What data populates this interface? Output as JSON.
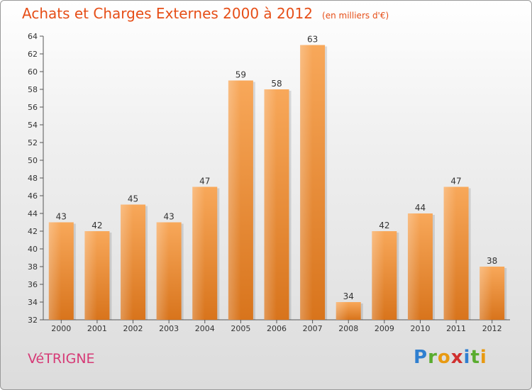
{
  "header": {
    "title": "Achats et Charges Externes 2000 à 2012",
    "subtitle": "(en milliers d'€)"
  },
  "place_name": "VéTRIGNE",
  "logo": {
    "text": "Proxiti",
    "letters": [
      {
        "ch": "P",
        "color": "#2f7fd0"
      },
      {
        "ch": "r",
        "color": "#5aac2f"
      },
      {
        "ch": "o",
        "color": "#e89a12"
      },
      {
        "ch": "x",
        "color": "#d0302f"
      },
      {
        "ch": "i",
        "color": "#2f7fd0"
      },
      {
        "ch": "t",
        "color": "#5aac2f"
      },
      {
        "ch": "i",
        "color": "#e89a12"
      }
    ]
  },
  "colors": {
    "accent": "#e64e17",
    "place": "#d63a76",
    "bar_top": "#f8a85a",
    "bar_bottom": "#d8741c"
  },
  "chart_data": {
    "type": "bar",
    "categories": [
      "2000",
      "2001",
      "2002",
      "2003",
      "2004",
      "2005",
      "2006",
      "2007",
      "2008",
      "2009",
      "2010",
      "2011",
      "2012"
    ],
    "values": [
      43,
      42,
      45,
      43,
      47,
      59,
      58,
      63,
      34,
      42,
      44,
      47,
      38
    ],
    "title": "Achats et Charges Externes 2000 à 2012",
    "xlabel": "",
    "ylabel": "",
    "ylim": [
      32,
      64
    ],
    "yticks": [
      32,
      34,
      36,
      38,
      40,
      42,
      44,
      46,
      48,
      50,
      52,
      54,
      56,
      58,
      60,
      62,
      64
    ],
    "grid": false,
    "legend": "none"
  }
}
